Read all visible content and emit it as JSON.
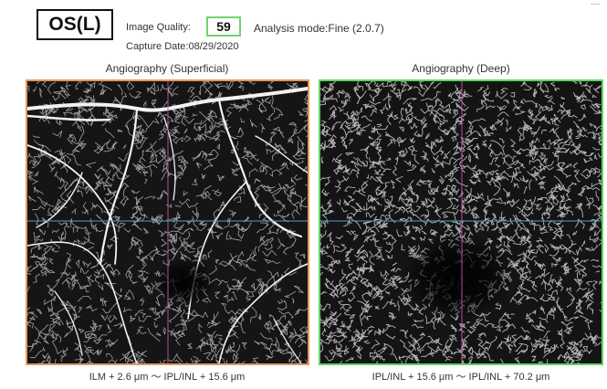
{
  "header": {
    "eye": "OS(L)",
    "image_quality_label": "Image Quality:",
    "image_quality_value": "59",
    "analysis_mode": "Analysis mode:Fine  (2.0.7)",
    "capture_date": "Capture Date:08/29/2020",
    "corner_text": "...."
  },
  "panels": [
    {
      "title": "Angiography (Superficial)",
      "caption": "ILM + 2.6 μm 〜 IPL/INL + 15.6 μm"
    },
    {
      "title": "Angiography (Deep)",
      "caption": "IPL/INL + 15.6 μm 〜 IPL/INL + 70.2 μm"
    }
  ],
  "colors": {
    "superficial_border": "#e6975a",
    "deep_border": "#5fd65f",
    "quality_box": "#6fd36f",
    "vertical_crosshair": "#c04a9a",
    "horizontal_crosshair": "#4aa3c8"
  }
}
